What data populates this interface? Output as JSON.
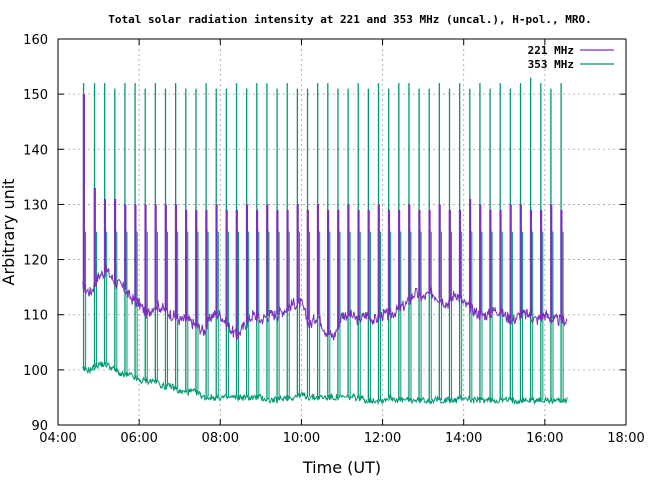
{
  "chart_data": {
    "type": "line",
    "title": "Total solar radiation intensity at 221 and 353 MHz (uncal.), H-pol., MRO.",
    "xlabel": "Time (UT)",
    "ylabel": "Arbitrary unit",
    "xlim": [
      4,
      18
    ],
    "ylim": [
      90,
      160
    ],
    "x_ticks": [
      "04:00",
      "06:00",
      "08:00",
      "10:00",
      "12:00",
      "14:00",
      "16:00",
      "18:00"
    ],
    "y_ticks": [
      "90",
      "100",
      "110",
      "120",
      "130",
      "140",
      "150",
      "160"
    ],
    "grid": true,
    "legend_position": "top-right",
    "series": [
      {
        "name": "221 MHz",
        "color": "#7b2fbe",
        "x": [
          4.6,
          4.8,
          5.0,
          5.2,
          5.4,
          5.6,
          5.8,
          6.0,
          6.2,
          6.4,
          6.6,
          6.8,
          7.0,
          7.2,
          7.4,
          7.6,
          7.8,
          8.0,
          8.2,
          8.4,
          8.6,
          8.8,
          9.0,
          9.2,
          9.4,
          9.6,
          9.8,
          10.0,
          10.2,
          10.4,
          10.6,
          10.8,
          11.0,
          11.2,
          11.4,
          11.6,
          11.8,
          12.0,
          12.2,
          12.4,
          12.6,
          12.8,
          13.0,
          13.2,
          13.4,
          13.6,
          13.8,
          14.0,
          14.2,
          14.4,
          14.6,
          14.8,
          15.0,
          15.2,
          15.4,
          15.6,
          15.8,
          16.0,
          16.2,
          16.4,
          16.55
        ],
        "values": [
          115,
          114,
          117,
          118,
          116,
          115,
          113,
          112,
          110,
          112,
          111,
          110,
          109,
          109,
          108,
          107,
          110,
          110,
          108,
          106,
          108,
          110,
          109,
          110,
          110,
          111,
          112,
          112,
          108,
          110,
          107,
          106,
          110,
          110,
          109,
          110,
          109,
          110,
          110,
          111,
          112,
          114,
          113,
          114,
          113,
          112,
          114,
          112,
          111,
          110,
          110,
          111,
          110,
          109,
          110,
          110,
          109,
          110,
          109,
          109,
          109
        ]
      },
      {
        "name": "353 MHz",
        "color": "#009973",
        "x": [
          4.6,
          4.8,
          5.0,
          5.2,
          5.4,
          5.6,
          5.8,
          6.0,
          6.2,
          6.4,
          6.6,
          6.8,
          7.0,
          7.2,
          7.4,
          7.6,
          7.8,
          8.0,
          8.2,
          8.4,
          8.6,
          8.8,
          9.0,
          9.2,
          9.4,
          9.6,
          9.8,
          10.0,
          10.2,
          10.4,
          10.6,
          10.8,
          11.0,
          11.2,
          11.4,
          11.6,
          11.8,
          12.0,
          12.2,
          12.4,
          12.6,
          12.8,
          13.0,
          13.2,
          13.4,
          13.6,
          13.8,
          14.0,
          14.2,
          14.4,
          14.6,
          14.8,
          15.0,
          15.2,
          15.4,
          15.6,
          15.8,
          16.0,
          16.2,
          16.4,
          16.55
        ],
        "values": [
          100,
          100,
          101,
          101,
          100,
          99,
          99,
          98,
          98,
          98,
          97,
          97,
          96,
          96,
          96,
          95,
          95,
          95,
          95,
          95,
          95,
          95,
          95,
          94.5,
          94.5,
          95,
          95,
          95.5,
          95,
          95,
          95,
          95,
          95,
          95,
          95,
          94.5,
          94.5,
          94.5,
          95,
          94.5,
          94.5,
          94.5,
          94.5,
          94.5,
          94.5,
          94.5,
          94.5,
          95,
          94.5,
          94.5,
          94.5,
          94.5,
          94.5,
          94.5,
          94.5,
          94.5,
          94.5,
          94.5,
          94.5,
          94.5,
          94.5
        ]
      }
    ],
    "calibration_spikes": {
      "221 MHz": {
        "x": [
          4.63,
          4.9,
          5.15,
          5.4,
          5.65,
          5.9,
          6.15,
          6.4,
          6.65,
          6.9,
          7.15,
          7.4,
          7.65,
          7.9,
          8.15,
          8.4,
          8.65,
          8.9,
          9.15,
          9.4,
          9.65,
          9.9,
          10.15,
          10.4,
          10.65,
          10.9,
          11.15,
          11.4,
          11.65,
          11.9,
          12.15,
          12.4,
          12.65,
          12.9,
          13.15,
          13.4,
          13.65,
          13.9,
          14.15,
          14.4,
          14.65,
          14.9,
          15.15,
          15.4,
          15.65,
          15.9,
          16.15,
          16.4
        ],
        "peaks": [
          150,
          133,
          131,
          131,
          130,
          130,
          130,
          130,
          130,
          130,
          129,
          129,
          129,
          130,
          129,
          129,
          130,
          129,
          130,
          129,
          129,
          130,
          129,
          130,
          129,
          129,
          130,
          129,
          129,
          130,
          129,
          129,
          130,
          129,
          129,
          130,
          129,
          129,
          131,
          130,
          129,
          129,
          130,
          130,
          129,
          129,
          130,
          129
        ]
      },
      "353 MHz": {
        "x": [
          4.63,
          4.9,
          5.15,
          5.4,
          5.65,
          5.9,
          6.15,
          6.4,
          6.65,
          6.9,
          7.15,
          7.4,
          7.65,
          7.9,
          8.15,
          8.4,
          8.65,
          8.9,
          9.15,
          9.4,
          9.65,
          9.9,
          10.15,
          10.4,
          10.65,
          10.9,
          11.15,
          11.4,
          11.65,
          11.9,
          12.15,
          12.4,
          12.65,
          12.9,
          13.15,
          13.4,
          13.65,
          13.9,
          14.15,
          14.4,
          14.65,
          14.9,
          15.15,
          15.4,
          15.65,
          15.9,
          16.15,
          16.4
        ],
        "peaks": [
          152,
          152,
          152,
          151,
          152,
          152,
          151,
          152,
          151,
          152,
          151,
          151,
          152,
          151,
          151,
          152,
          151,
          152,
          152,
          151,
          152,
          151,
          151,
          152,
          152,
          151,
          151,
          152,
          151,
          152,
          151,
          152,
          152,
          151,
          151,
          152,
          151,
          152,
          151,
          152,
          151,
          152,
          151,
          152,
          153,
          152,
          151,
          152
        ],
        "plateau": 125
      }
    }
  }
}
